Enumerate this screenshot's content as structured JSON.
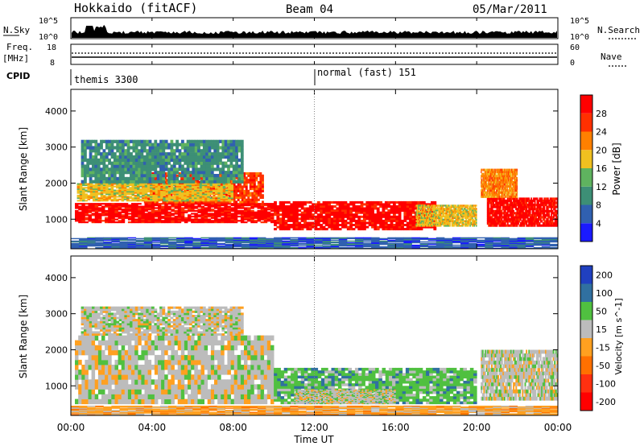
{
  "header": {
    "title": "Hokkaido (fitACF)",
    "beam": "Beam 04",
    "date": "05/Mar/2011"
  },
  "panels": {
    "nsky_label": "N.Sky",
    "nsky_ticks": [
      "10^5",
      "10^0"
    ],
    "nsearch_label": "N.Search",
    "nsearch_ticks": [
      "10^5",
      "10^0"
    ],
    "freq_label": "Freq.",
    "freq_unit": "[MHz]",
    "freq_ticks": [
      "18",
      "8"
    ],
    "nave_label": "Nave",
    "nave_ticks": [
      "60",
      "0"
    ],
    "cpid_label": "CPID",
    "cpid_modes": [
      {
        "label": "themis 3300",
        "start_hour": 0
      },
      {
        "label": "normal (fast) 151",
        "start_hour": 12
      }
    ]
  },
  "chart_data": [
    {
      "type": "heatmap",
      "title": "",
      "ylabel": "Slant Range [km]",
      "xlabel": "",
      "yticks": [
        "1000",
        "2000",
        "3000",
        "4000"
      ],
      "ylim": [
        180,
        4600
      ],
      "xlim_hours": [
        0,
        24
      ],
      "colorbar": {
        "label": "Power [dB]",
        "ticks": [
          "4",
          "8",
          "12",
          "16",
          "20",
          "24",
          "28"
        ],
        "colors": [
          "#1a1aff",
          "#3060b0",
          "#3d8f76",
          "#5fb35f",
          "#f0c020",
          "#ff8000",
          "#ff3000",
          "#ff0000"
        ]
      },
      "regions": [
        {
          "t0": 0.2,
          "t1": 10.0,
          "r0": 900,
          "r1": 1450,
          "level": 7
        },
        {
          "t0": 3.5,
          "t1": 9.5,
          "r0": 1450,
          "r1": 2300,
          "level": 6
        },
        {
          "t0": 0.3,
          "t1": 8.0,
          "r0": 1500,
          "r1": 2000,
          "level": 4
        },
        {
          "t0": 0.5,
          "t1": 8.5,
          "r0": 2000,
          "r1": 3200,
          "level": 2
        },
        {
          "t0": 10.0,
          "t1": 18.0,
          "r0": 700,
          "r1": 1500,
          "level": 7
        },
        {
          "t0": 17.0,
          "t1": 20.0,
          "r0": 800,
          "r1": 1400,
          "level": 4
        },
        {
          "t0": 20.5,
          "t1": 24.0,
          "r0": 800,
          "r1": 1600,
          "level": 7
        },
        {
          "t0": 20.2,
          "t1": 22.0,
          "r0": 1600,
          "r1": 2400,
          "level": 5
        },
        {
          "t0": 0.0,
          "t1": 24.0,
          "r0": 180,
          "r1": 500,
          "level": 1
        }
      ]
    },
    {
      "type": "heatmap",
      "title": "",
      "ylabel": "Slant Range [km]",
      "xlabel": "Time UT",
      "yticks": [
        "1000",
        "2000",
        "3000",
        "4000"
      ],
      "ylim": [
        180,
        4600
      ],
      "xlim_hours": [
        0,
        24
      ],
      "xticks": [
        "00:00",
        "04:00",
        "08:00",
        "12:00",
        "16:00",
        "20:00",
        "00:00"
      ],
      "colorbar": {
        "label": "Velocity [m s^-1]",
        "ticks": [
          "200",
          "100",
          "50",
          "15",
          "-15",
          "-50",
          "-100",
          "-200"
        ],
        "colors": [
          "#2040c0",
          "#3070a0",
          "#50c040",
          "#bcbcbc",
          "#ffa020",
          "#ff7000",
          "#ff3010",
          "#ff0000"
        ]
      },
      "regions": [
        {
          "t0": 0.2,
          "t1": 10.0,
          "r0": 500,
          "r1": 2400,
          "level": 3
        },
        {
          "t0": 0.5,
          "t1": 8.5,
          "r0": 2400,
          "r1": 3200,
          "level": 3
        },
        {
          "t0": 10.0,
          "t1": 20.0,
          "r0": 500,
          "r1": 1500,
          "level": 2
        },
        {
          "t0": 11.0,
          "t1": 16.0,
          "r0": 500,
          "r1": 900,
          "level": 3
        },
        {
          "t0": 20.2,
          "t1": 24.0,
          "r0": 600,
          "r1": 2000,
          "level": 3
        },
        {
          "t0": 0.0,
          "t1": 24.0,
          "r0": 180,
          "r1": 450,
          "level": 4
        }
      ]
    }
  ]
}
